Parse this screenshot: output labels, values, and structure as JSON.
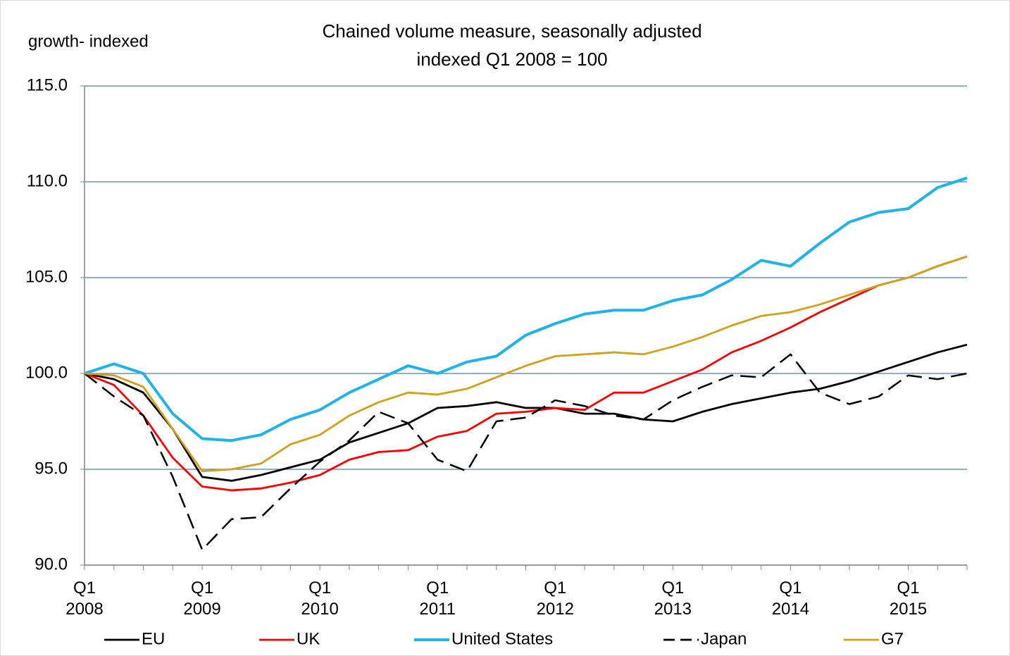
{
  "chart_data": {
    "type": "line",
    "title": "Chained volume measure, seasonally adjusted",
    "subtitle": "indexed Q1 2008 = 100",
    "y_label": "growth- indexed",
    "categories": [
      "Q1\n2008",
      null,
      null,
      null,
      "Q1\n2009",
      null,
      null,
      null,
      "Q1\n2010",
      null,
      null,
      null,
      "Q1\n2011",
      null,
      null,
      null,
      "Q1\n2012",
      null,
      null,
      null,
      "Q1\n2013",
      null,
      null,
      null,
      "Q1\n2014",
      null,
      null,
      null,
      "Q1\n2015",
      null,
      null
    ],
    "series": [
      {
        "name": "EU",
        "color": "#000000",
        "line_style": "solid",
        "values": [
          100,
          99.7,
          99.0,
          97.1,
          94.6,
          94.4,
          94.7,
          95.1,
          95.5,
          96.4,
          96.9,
          97.4,
          98.2,
          98.3,
          98.5,
          98.2,
          98.2,
          97.9,
          97.9,
          97.6,
          97.5,
          98.0,
          98.4,
          98.7,
          99.0,
          99.2,
          99.6,
          100.1,
          100.6,
          101.1,
          101.5
        ]
      },
      {
        "name": "UK",
        "color": "#ff0000",
        "line_style": "solid",
        "values": [
          100,
          99.4,
          97.8,
          95.6,
          94.1,
          93.9,
          94.0,
          94.3,
          94.7,
          95.5,
          95.9,
          96.0,
          96.7,
          97.0,
          97.9,
          98.0,
          98.2,
          98.1,
          99.0,
          99.0,
          99.6,
          100.2,
          101.1,
          101.7,
          102.4,
          103.2,
          103.9,
          104.6,
          105.0,
          105.6,
          106.1
        ]
      },
      {
        "name": "United States",
        "color": "#1eb4ea",
        "line_style": "solid",
        "values": [
          100,
          100.5,
          100.0,
          97.9,
          96.6,
          96.5,
          96.8,
          97.6,
          98.1,
          99.0,
          99.7,
          100.4,
          100.0,
          100.6,
          100.9,
          102.0,
          102.6,
          103.1,
          103.3,
          103.3,
          103.8,
          104.1,
          104.9,
          105.9,
          105.6,
          106.8,
          107.9,
          108.4,
          108.6,
          109.7,
          110.2
        ]
      },
      {
        "name": "Japan",
        "color": "#000000",
        "line_style": "dashed",
        "values": [
          100,
          98.8,
          97.8,
          94.6,
          90.8,
          92.4,
          92.5,
          94.0,
          95.4,
          96.5,
          98.0,
          97.4,
          95.5,
          94.9,
          97.5,
          97.7,
          98.6,
          98.3,
          97.8,
          97.6,
          98.6,
          99.3,
          99.9,
          99.8,
          101.0,
          99.0,
          98.4,
          98.8,
          99.9,
          99.7,
          100.0
        ]
      },
      {
        "name": "G7",
        "color": "#d4a017",
        "line_style": "solid",
        "values": [
          100,
          99.9,
          99.3,
          97.1,
          94.9,
          95.0,
          95.3,
          96.3,
          96.8,
          97.8,
          98.5,
          99.0,
          98.9,
          99.2,
          99.8,
          100.4,
          100.9,
          101.0,
          101.1,
          101.0,
          101.4,
          101.9,
          102.5,
          103.0,
          103.2,
          103.6,
          104.1,
          104.6,
          105.0,
          105.6,
          106.1
        ]
      }
    ],
    "ylim": [
      90,
      115
    ],
    "yticks": [
      {
        "value": 90,
        "label": "90.0"
      },
      {
        "value": 95,
        "label": "95.0"
      },
      {
        "value": 100,
        "label": "100.0"
      },
      {
        "value": 105,
        "label": "105.0"
      },
      {
        "value": 110,
        "label": "110.0"
      },
      {
        "value": 115,
        "label": "115.0"
      }
    ],
    "grid": true,
    "legend": "bottom"
  }
}
